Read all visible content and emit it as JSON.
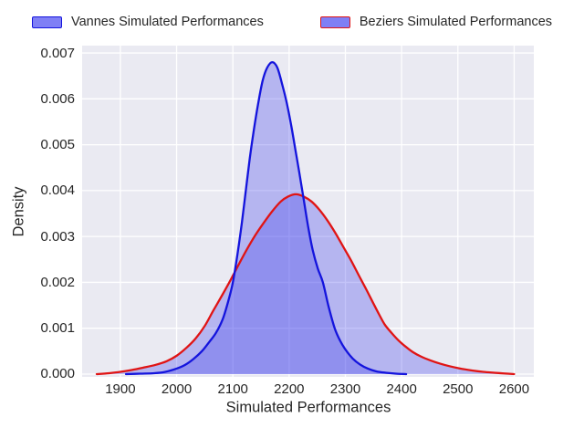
{
  "figure": {
    "background": "#ffffff",
    "plot_background": "#eaeaf2",
    "grid_color": "#ffffff",
    "text_color": "#262626"
  },
  "legend": {
    "entries": [
      {
        "label": "Vannes Simulated Performances",
        "fill": "#7f7ff5",
        "edge": "#1414dd"
      },
      {
        "label": "Beziers Simulated Performances",
        "fill": "#7f7ff5",
        "edge": "#e01414"
      }
    ]
  },
  "chart_data": {
    "type": "area",
    "title": "",
    "xlabel": "Simulated Performances",
    "ylabel": "Density",
    "grid": true,
    "legend_position": "upper center, above axes",
    "xlim": [
      1832,
      2635
    ],
    "ylim": [
      -6e-05,
      0.00716
    ],
    "x_ticks": [
      {
        "value": 1900,
        "label": "1900"
      },
      {
        "value": 2000,
        "label": "2000"
      },
      {
        "value": 2100,
        "label": "2100"
      },
      {
        "value": 2200,
        "label": "2200"
      },
      {
        "value": 2300,
        "label": "2300"
      },
      {
        "value": 2400,
        "label": "2400"
      },
      {
        "value": 2500,
        "label": "2500"
      },
      {
        "value": 2600,
        "label": "2600"
      }
    ],
    "y_ticks": [
      {
        "value": 0.0,
        "label": "0.000"
      },
      {
        "value": 0.001,
        "label": "0.001"
      },
      {
        "value": 0.002,
        "label": "0.002"
      },
      {
        "value": 0.003,
        "label": "0.003"
      },
      {
        "value": 0.004,
        "label": "0.004"
      },
      {
        "value": 0.005,
        "label": "0.005"
      },
      {
        "value": 0.006,
        "label": "0.006"
      },
      {
        "value": 0.007,
        "label": "0.007"
      }
    ],
    "series": [
      {
        "name": "Vannes Simulated Performances",
        "line_color": "#1414dd",
        "fill_color": "rgba(60,60,235,0.30)",
        "peak": {
          "x": 2170,
          "y": 0.0068
        },
        "points": [
          [
            1910,
            0
          ],
          [
            1935,
            1e-05
          ],
          [
            1960,
            2e-05
          ],
          [
            1980,
            5e-05
          ],
          [
            2000,
            0.00012
          ],
          [
            2015,
            0.0002
          ],
          [
            2030,
            0.00033
          ],
          [
            2045,
            0.0005
          ],
          [
            2058,
            0.0007
          ],
          [
            2070,
            0.0009
          ],
          [
            2082,
            0.0012
          ],
          [
            2092,
            0.0016
          ],
          [
            2100,
            0.002
          ],
          [
            2108,
            0.0026
          ],
          [
            2116,
            0.0033
          ],
          [
            2123,
            0.004
          ],
          [
            2130,
            0.0047
          ],
          [
            2137,
            0.0053
          ],
          [
            2145,
            0.0059
          ],
          [
            2153,
            0.0064
          ],
          [
            2161,
            0.00668
          ],
          [
            2170,
            0.0068
          ],
          [
            2179,
            0.00668
          ],
          [
            2188,
            0.0063
          ],
          [
            2196,
            0.0059
          ],
          [
            2204,
            0.0054
          ],
          [
            2211,
            0.0049
          ],
          [
            2218,
            0.0044
          ],
          [
            2226,
            0.0038
          ],
          [
            2234,
            0.0032
          ],
          [
            2242,
            0.0027
          ],
          [
            2251,
            0.0023
          ],
          [
            2260,
            0.002
          ],
          [
            2270,
            0.00148
          ],
          [
            2281,
            0.001
          ],
          [
            2291,
            0.00072
          ],
          [
            2301,
            0.00052
          ],
          [
            2313,
            0.00034
          ],
          [
            2326,
            0.00021
          ],
          [
            2340,
            0.00012
          ],
          [
            2355,
            6e-05
          ],
          [
            2372,
            3e-05
          ],
          [
            2390,
            1e-05
          ],
          [
            2408,
            0
          ]
        ]
      },
      {
        "name": "Beziers Simulated Performances",
        "line_color": "#e01414",
        "fill_color": "rgba(60,60,235,0.30)",
        "peak": {
          "x": 2212,
          "y": 0.00392
        },
        "points": [
          [
            1858,
            0
          ],
          [
            1880,
            2e-05
          ],
          [
            1900,
            5e-05
          ],
          [
            1920,
            9e-05
          ],
          [
            1940,
            0.00014
          ],
          [
            1962,
            0.0002
          ],
          [
            1982,
            0.00028
          ],
          [
            2000,
            0.0004
          ],
          [
            2018,
            0.00058
          ],
          [
            2034,
            0.00078
          ],
          [
            2050,
            0.00105
          ],
          [
            2065,
            0.00138
          ],
          [
            2080,
            0.0017
          ],
          [
            2095,
            0.00203
          ],
          [
            2110,
            0.00238
          ],
          [
            2125,
            0.00272
          ],
          [
            2140,
            0.00303
          ],
          [
            2155,
            0.0033
          ],
          [
            2170,
            0.00355
          ],
          [
            2185,
            0.00376
          ],
          [
            2198,
            0.00387
          ],
          [
            2212,
            0.00392
          ],
          [
            2226,
            0.00387
          ],
          [
            2240,
            0.00376
          ],
          [
            2254,
            0.00358
          ],
          [
            2268,
            0.00335
          ],
          [
            2282,
            0.00308
          ],
          [
            2296,
            0.00278
          ],
          [
            2310,
            0.00248
          ],
          [
            2324,
            0.00215
          ],
          [
            2337,
            0.00185
          ],
          [
            2349,
            0.00156
          ],
          [
            2360,
            0.0013
          ],
          [
            2370,
            0.00108
          ],
          [
            2382,
            0.0009
          ],
          [
            2394,
            0.00074
          ],
          [
            2407,
            0.0006
          ],
          [
            2420,
            0.00048
          ],
          [
            2435,
            0.00038
          ],
          [
            2451,
            0.0003
          ],
          [
            2468,
            0.00023
          ],
          [
            2486,
            0.00017
          ],
          [
            2505,
            0.00012
          ],
          [
            2525,
            8e-05
          ],
          [
            2545,
            5e-05
          ],
          [
            2565,
            3e-05
          ],
          [
            2582,
            1.5e-05
          ],
          [
            2600,
            0
          ]
        ]
      }
    ]
  }
}
